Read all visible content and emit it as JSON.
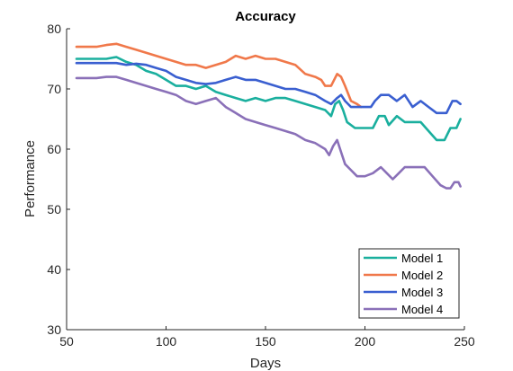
{
  "chart_data": {
    "type": "line",
    "title": "Accuracy",
    "xlabel": "Days",
    "ylabel": "Performance",
    "xlim": [
      50,
      250
    ],
    "ylim": [
      30,
      80
    ],
    "xticks": [
      50,
      100,
      150,
      200,
      250
    ],
    "yticks": [
      30,
      40,
      50,
      60,
      70,
      80
    ],
    "grid": false,
    "legend_position": "bottom-right",
    "series": [
      {
        "name": "Model 1",
        "color": "#1aaf9e",
        "points": [
          [
            55,
            75.0
          ],
          [
            70,
            75.0
          ],
          [
            75,
            75.3
          ],
          [
            80,
            74.5
          ],
          [
            85,
            74.0
          ],
          [
            90,
            73.0
          ],
          [
            95,
            72.5
          ],
          [
            100,
            71.5
          ],
          [
            105,
            70.5
          ],
          [
            110,
            70.5
          ],
          [
            115,
            70.0
          ],
          [
            120,
            70.5
          ],
          [
            125,
            69.5
          ],
          [
            130,
            69.0
          ],
          [
            135,
            68.5
          ],
          [
            140,
            68.0
          ],
          [
            145,
            68.5
          ],
          [
            150,
            68.0
          ],
          [
            155,
            68.5
          ],
          [
            160,
            68.5
          ],
          [
            165,
            68.0
          ],
          [
            170,
            67.5
          ],
          [
            175,
            67.0
          ],
          [
            180,
            66.5
          ],
          [
            183,
            65.5
          ],
          [
            185,
            67.5
          ],
          [
            187,
            68.0
          ],
          [
            189,
            66.5
          ],
          [
            191,
            64.5
          ],
          [
            195,
            63.5
          ],
          [
            200,
            63.5
          ],
          [
            204,
            63.5
          ],
          [
            207,
            65.5
          ],
          [
            210,
            65.5
          ],
          [
            212,
            64.0
          ],
          [
            216,
            65.5
          ],
          [
            220,
            64.5
          ],
          [
            228,
            64.5
          ],
          [
            232,
            63.0
          ],
          [
            236,
            61.5
          ],
          [
            240,
            61.5
          ],
          [
            243,
            63.5
          ],
          [
            246,
            63.5
          ],
          [
            248,
            65.0
          ]
        ]
      },
      {
        "name": "Model 2",
        "color": "#f0784a",
        "points": [
          [
            55,
            77.0
          ],
          [
            65,
            77.0
          ],
          [
            70,
            77.3
          ],
          [
            75,
            77.5
          ],
          [
            80,
            77.0
          ],
          [
            85,
            76.5
          ],
          [
            90,
            76.0
          ],
          [
            95,
            75.5
          ],
          [
            100,
            75.0
          ],
          [
            105,
            74.5
          ],
          [
            110,
            74.0
          ],
          [
            115,
            74.0
          ],
          [
            120,
            73.5
          ],
          [
            125,
            74.0
          ],
          [
            130,
            74.5
          ],
          [
            135,
            75.5
          ],
          [
            140,
            75.0
          ],
          [
            145,
            75.5
          ],
          [
            150,
            75.0
          ],
          [
            155,
            75.0
          ],
          [
            160,
            74.5
          ],
          [
            165,
            74.0
          ],
          [
            170,
            72.5
          ],
          [
            175,
            72.0
          ],
          [
            178,
            71.5
          ],
          [
            180,
            70.5
          ],
          [
            183,
            70.5
          ],
          [
            186,
            72.5
          ],
          [
            188,
            72.0
          ],
          [
            190,
            70.5
          ],
          [
            193,
            68.0
          ],
          [
            196,
            67.5
          ],
          [
            198,
            67.0
          ]
        ]
      },
      {
        "name": "Model 3",
        "color": "#3a5fd0",
        "points": [
          [
            55,
            74.3
          ],
          [
            65,
            74.3
          ],
          [
            75,
            74.3
          ],
          [
            80,
            74.0
          ],
          [
            85,
            74.2
          ],
          [
            90,
            74.0
          ],
          [
            95,
            73.5
          ],
          [
            100,
            73.0
          ],
          [
            105,
            72.0
          ],
          [
            110,
            71.5
          ],
          [
            115,
            71.0
          ],
          [
            120,
            70.8
          ],
          [
            125,
            71.0
          ],
          [
            130,
            71.5
          ],
          [
            135,
            72.0
          ],
          [
            140,
            71.5
          ],
          [
            145,
            71.5
          ],
          [
            150,
            71.0
          ],
          [
            155,
            70.5
          ],
          [
            160,
            70.0
          ],
          [
            165,
            70.0
          ],
          [
            170,
            69.5
          ],
          [
            175,
            69.0
          ],
          [
            180,
            68.0
          ],
          [
            183,
            67.5
          ],
          [
            186,
            68.5
          ],
          [
            188,
            69.0
          ],
          [
            190,
            68.0
          ],
          [
            193,
            67.0
          ],
          [
            198,
            67.0
          ],
          [
            203,
            67.0
          ],
          [
            205,
            68.0
          ],
          [
            208,
            69.0
          ],
          [
            212,
            69.0
          ],
          [
            216,
            68.0
          ],
          [
            220,
            69.0
          ],
          [
            224,
            67.0
          ],
          [
            228,
            68.0
          ],
          [
            232,
            67.0
          ],
          [
            236,
            66.0
          ],
          [
            241,
            66.0
          ],
          [
            244,
            68.0
          ],
          [
            246,
            68.0
          ],
          [
            248,
            67.5
          ]
        ]
      },
      {
        "name": "Model 4",
        "color": "#8a70b8",
        "points": [
          [
            55,
            71.8
          ],
          [
            65,
            71.8
          ],
          [
            70,
            72.0
          ],
          [
            75,
            72.0
          ],
          [
            80,
            71.5
          ],
          [
            85,
            71.0
          ],
          [
            90,
            70.5
          ],
          [
            95,
            70.0
          ],
          [
            100,
            69.5
          ],
          [
            105,
            69.0
          ],
          [
            110,
            68.0
          ],
          [
            115,
            67.5
          ],
          [
            120,
            68.0
          ],
          [
            125,
            68.5
          ],
          [
            130,
            67.0
          ],
          [
            135,
            66.0
          ],
          [
            140,
            65.0
          ],
          [
            145,
            64.5
          ],
          [
            150,
            64.0
          ],
          [
            155,
            63.5
          ],
          [
            160,
            63.0
          ],
          [
            165,
            62.5
          ],
          [
            170,
            61.5
          ],
          [
            175,
            61.0
          ],
          [
            180,
            60.0
          ],
          [
            182,
            59.0
          ],
          [
            184,
            60.5
          ],
          [
            186,
            61.5
          ],
          [
            188,
            59.5
          ],
          [
            190,
            57.5
          ],
          [
            193,
            56.5
          ],
          [
            196,
            55.5
          ],
          [
            200,
            55.5
          ],
          [
            204,
            56.0
          ],
          [
            208,
            57.0
          ],
          [
            211,
            56.0
          ],
          [
            214,
            55.0
          ],
          [
            217,
            56.0
          ],
          [
            220,
            57.0
          ],
          [
            230,
            57.0
          ],
          [
            234,
            55.5
          ],
          [
            238,
            54.0
          ],
          [
            241,
            53.5
          ],
          [
            243,
            53.5
          ],
          [
            245,
            54.5
          ],
          [
            247,
            54.5
          ],
          [
            248,
            53.8
          ]
        ]
      }
    ]
  }
}
